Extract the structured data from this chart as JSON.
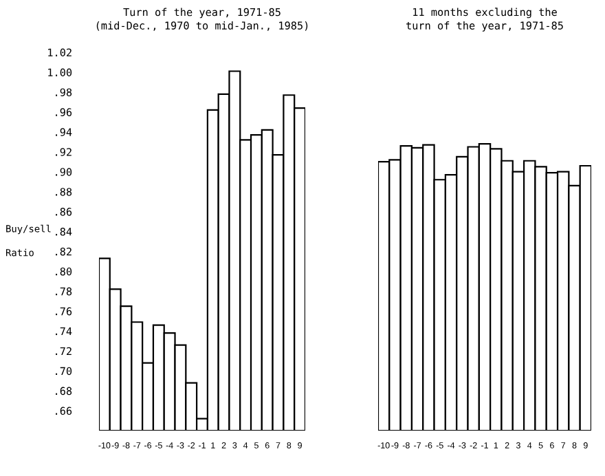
{
  "chart_data": [
    {
      "type": "bar",
      "title": "Turn of the year, 1971-85\n(mid-Dec., 1970 to mid-Jan., 1985)",
      "ylabel": "Buy/sell\nRatio",
      "categories": [
        "-10",
        "-9",
        "-8",
        "-7",
        "-6",
        "-5",
        "-4",
        "-3",
        "-2",
        "-1",
        "1",
        "2",
        "3",
        "4",
        "5",
        "6",
        "7",
        "8",
        "9"
      ],
      "values": [
        0.813,
        0.782,
        0.765,
        0.749,
        0.708,
        0.746,
        0.738,
        0.726,
        0.688,
        0.652,
        0.962,
        0.978,
        1.001,
        0.932,
        0.937,
        0.942,
        0.917,
        0.977,
        0.964
      ],
      "color": "#ffffff",
      "ylim": [
        0.64,
        1.02
      ],
      "yticks": [
        {
          "value": 1.02,
          "label": "1.02"
        },
        {
          "value": 1.0,
          "label": "1.00"
        },
        {
          "value": 0.98,
          "label": ".98"
        },
        {
          "value": 0.96,
          "label": ".96"
        },
        {
          "value": 0.94,
          "label": ".94"
        },
        {
          "value": 0.92,
          "label": ".92"
        },
        {
          "value": 0.9,
          "label": ".90"
        },
        {
          "value": 0.88,
          "label": ".88"
        },
        {
          "value": 0.86,
          "label": ".86"
        },
        {
          "value": 0.84,
          "label": ".84"
        },
        {
          "value": 0.82,
          "label": ".82"
        },
        {
          "value": 0.8,
          "label": ".80"
        },
        {
          "value": 0.78,
          "label": ".78"
        },
        {
          "value": 0.76,
          "label": ".76"
        },
        {
          "value": 0.74,
          "label": ".74"
        },
        {
          "value": 0.72,
          "label": ".72"
        },
        {
          "value": 0.7,
          "label": ".70"
        },
        {
          "value": 0.68,
          "label": ".68"
        },
        {
          "value": 0.66,
          "label": ".66"
        }
      ]
    },
    {
      "type": "bar",
      "title": "11 months excluding the\nturn of the year, 1971-85",
      "categories": [
        "-10",
        "-9",
        "-8",
        "-7",
        "-6",
        "-5",
        "-4",
        "-3",
        "-2",
        "-1",
        "1",
        "2",
        "3",
        "4",
        "5",
        "6",
        "7",
        "8",
        "9"
      ],
      "values": [
        0.91,
        0.912,
        0.926,
        0.924,
        0.927,
        0.892,
        0.897,
        0.915,
        0.925,
        0.928,
        0.923,
        0.911,
        0.9,
        0.911,
        0.905,
        0.899,
        0.9,
        0.886,
        0.906
      ],
      "color": "#ffffff",
      "ylim": [
        0.64,
        1.02
      ],
      "tick_labels": "x"
    }
  ]
}
